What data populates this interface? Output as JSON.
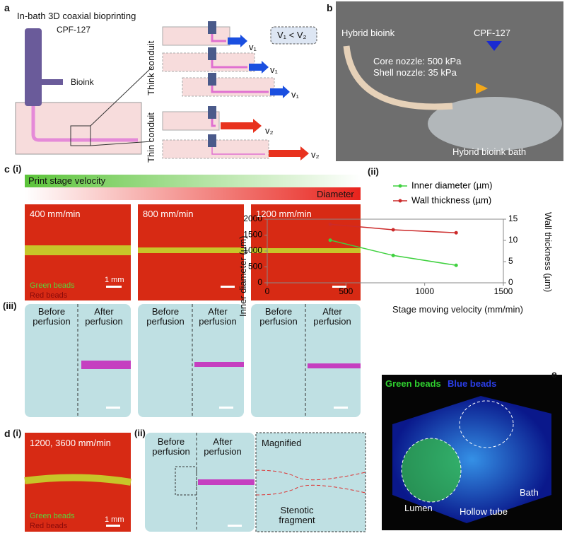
{
  "panel_a": {
    "letter": "a",
    "title": "In-bath 3D coaxial bioprinting",
    "cpf": "CPF-127",
    "bioink": "Bioink",
    "thick_label": "Think conduit",
    "thin_label": "Thin conduit",
    "relation": "V₁ < V₂",
    "v1": [
      "v₁",
      "v₁",
      "v₁"
    ],
    "v2": [
      "v₂",
      "v₂"
    ]
  },
  "panel_b": {
    "letter": "b",
    "hybrid_bioink": "Hybrid bioink",
    "cpf": "CPF-127",
    "core": "Core nozzle: 500 kPa",
    "shell": "Shell nozzle: 35 kPa",
    "bath": "Hybrid bioink bath"
  },
  "panel_c": {
    "letter": "c",
    "i": "(i)",
    "ii": "(ii)",
    "iii": "(iii)",
    "velocity_bar": "Print stage velocity",
    "diameter_bar": "Diameter",
    "speeds": [
      "400 mm/min",
      "800 mm/min",
      "1200 mm/min"
    ],
    "green": "Green beads",
    "red": "Red beads",
    "scale": "1 mm",
    "perfusion": [
      {
        "before": "Before perfusion",
        "after": "After perfusion"
      },
      {
        "before": "Before perfusion",
        "after": "After perfusion"
      },
      {
        "before": "Before perfusion",
        "after": "After perfusion"
      }
    ]
  },
  "panel_d": {
    "letter": "d",
    "i": "(i)",
    "ii": "(ii)",
    "speed": "1200, 3600 mm/min",
    "green": "Green beads",
    "red": "Red beads",
    "scale": "1 mm",
    "before": "Before perfusion",
    "after": "After perfusion",
    "magnified": "Magnified",
    "stenotic": "Stenotic fragment"
  },
  "panel_e": {
    "letter": "e",
    "green": "Green beads",
    "blue": "Blue beads",
    "lumen": "Lumen",
    "tube": "Hollow tube",
    "bath": "Bath"
  },
  "chart_data": {
    "type": "line",
    "x_label": "Stage moving velocity (mm/min)",
    "y_label": "Inner diameter (µm)",
    "y2_label": "Wall thickness (µm)",
    "x": [
      400,
      800,
      1200
    ],
    "xlim": [
      0,
      1500
    ],
    "xticks": [
      0,
      500,
      1000,
      1500
    ],
    "ylim": [
      0,
      2000
    ],
    "yticks": [
      0,
      500,
      1000,
      1500,
      2000
    ],
    "y2lim": [
      0,
      15
    ],
    "y2ticks": [
      0,
      5,
      10,
      15
    ],
    "series": [
      {
        "name": "Inner diameter (µm)",
        "color": "#3fd13f",
        "values": [
          1340,
          860,
          550
        ]
      },
      {
        "name": "Wall thickness (µm)",
        "color": "#cc2a2a",
        "values": [
          13.8,
          12.5,
          11.8
        ],
        "axis": "y2"
      }
    ]
  }
}
